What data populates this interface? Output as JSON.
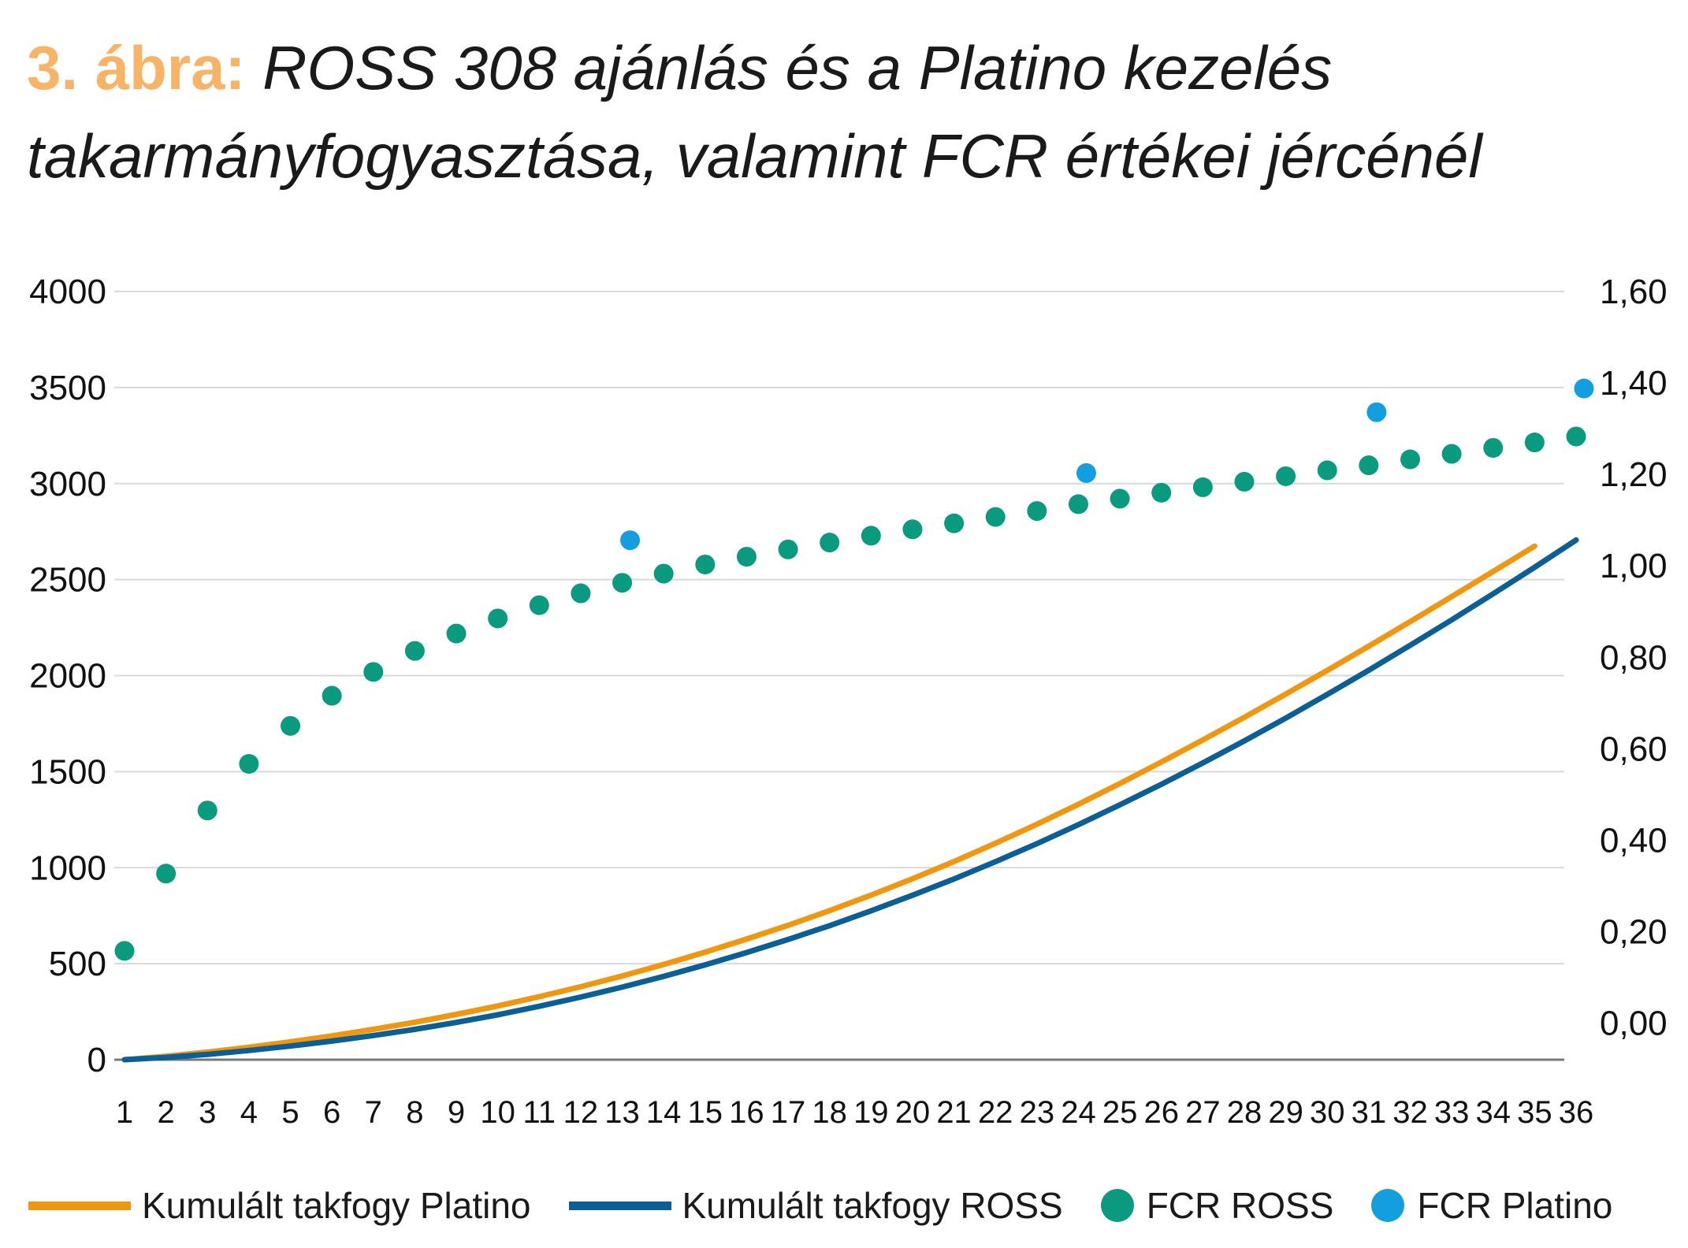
{
  "title": {
    "figure_label": "3. ábra:",
    "text_line1": "ROSS 308 ajánlás és a Platino kezelés",
    "text_line2": "takarmányfogyasztása, valamint FCR értékei jércénél"
  },
  "colors": {
    "title_accent": "#f7b466",
    "platino_line": "#f0960f",
    "ross_line": "#0b5f97",
    "fcr_ross": "#0a9a80",
    "fcr_platino": "#139ee0",
    "grid": "#d9d9d9",
    "axis": "#777777"
  },
  "chart_data": {
    "type": "line+scatter",
    "x": [
      1,
      2,
      3,
      4,
      5,
      6,
      7,
      8,
      9,
      10,
      11,
      12,
      13,
      14,
      15,
      16,
      17,
      18,
      19,
      20,
      21,
      22,
      23,
      24,
      25,
      26,
      27,
      28,
      29,
      30,
      31,
      32,
      33,
      34,
      35,
      36
    ],
    "x_tick_labels": [
      "1",
      "2",
      "3",
      "4",
      "5",
      "6",
      "7",
      "8",
      "9",
      "10",
      "11",
      "12",
      "13",
      "14",
      "15",
      "16",
      "17",
      "18",
      "19",
      "20",
      "21",
      "22",
      "23",
      "24",
      "25",
      "26",
      "27",
      "28",
      "29",
      "30",
      "31",
      "32",
      "33",
      "34",
      "35",
      "36"
    ],
    "y_left": {
      "min": 0,
      "max": 4000,
      "ticks": [
        0,
        500,
        1000,
        1500,
        2000,
        2500,
        3000,
        3500,
        4000
      ],
      "tick_labels": [
        "0",
        "500",
        "1000",
        "1500",
        "2000",
        "2500",
        "3000",
        "3500",
        "4000"
      ]
    },
    "y_right": {
      "min": -0.08,
      "max": 1.6,
      "ticks": [
        0.0,
        0.2,
        0.4,
        0.6,
        0.8,
        1.0,
        1.2,
        1.4,
        1.6
      ],
      "tick_labels": [
        "0,00",
        "0,20",
        "0,40",
        "0,60",
        "0,80",
        "1,00",
        "1,20",
        "1,40",
        "1,60"
      ]
    },
    "grid": true,
    "legend_position": "bottom",
    "series": [
      {
        "name": "Kumulált takfogy Platino",
        "kind": "line",
        "axis": "left",
        "values": [
          0,
          18,
          40,
          65,
          93,
          124,
          158,
          195,
          236,
          280,
          328,
          380,
          436,
          496,
          560,
          628,
          700,
          776,
          857,
          942,
          1032,
          1127,
          1226,
          1330,
          1438,
          1550,
          1665,
          1783,
          1904,
          2027,
          2153,
          2281,
          2411,
          2542,
          2674,
          null
        ]
      },
      {
        "name": "Kumulált takfogy ROSS",
        "kind": "line",
        "axis": "left",
        "values": [
          0,
          12,
          28,
          48,
          71,
          97,
          126,
          158,
          194,
          234,
          278,
          326,
          378,
          434,
          494,
          558,
          626,
          698,
          775,
          856,
          941,
          1031,
          1125,
          1224,
          1327,
          1434,
          1545,
          1660,
          1779,
          1902,
          2028,
          2158,
          2290,
          2426,
          2564,
          2706
        ]
      },
      {
        "name": "FCR ROSS",
        "kind": "scatter",
        "axis": "right",
        "values": [
          0.158,
          0.327,
          0.465,
          0.567,
          0.65,
          0.716,
          0.768,
          0.814,
          0.852,
          0.885,
          0.914,
          0.94,
          0.963,
          0.983,
          1.003,
          1.02,
          1.036,
          1.051,
          1.066,
          1.08,
          1.093,
          1.107,
          1.12,
          1.135,
          1.147,
          1.16,
          1.172,
          1.184,
          1.196,
          1.209,
          1.22,
          1.233,
          1.245,
          1.258,
          1.27,
          1.283
        ]
      },
      {
        "name": "FCR Platino",
        "kind": "scatter",
        "axis": "right",
        "points": [
          [
            13,
            1.056
          ],
          [
            24,
            1.203
          ],
          [
            31,
            1.336
          ],
          [
            36,
            1.388
          ]
        ]
      }
    ]
  },
  "legend": {
    "platino_line_label": "Kumulált takfogy Platino",
    "ross_line_label": "Kumulált takfogy ROSS",
    "fcr_ross_label": "FCR ROSS",
    "fcr_platino_label": "FCR Platino"
  }
}
